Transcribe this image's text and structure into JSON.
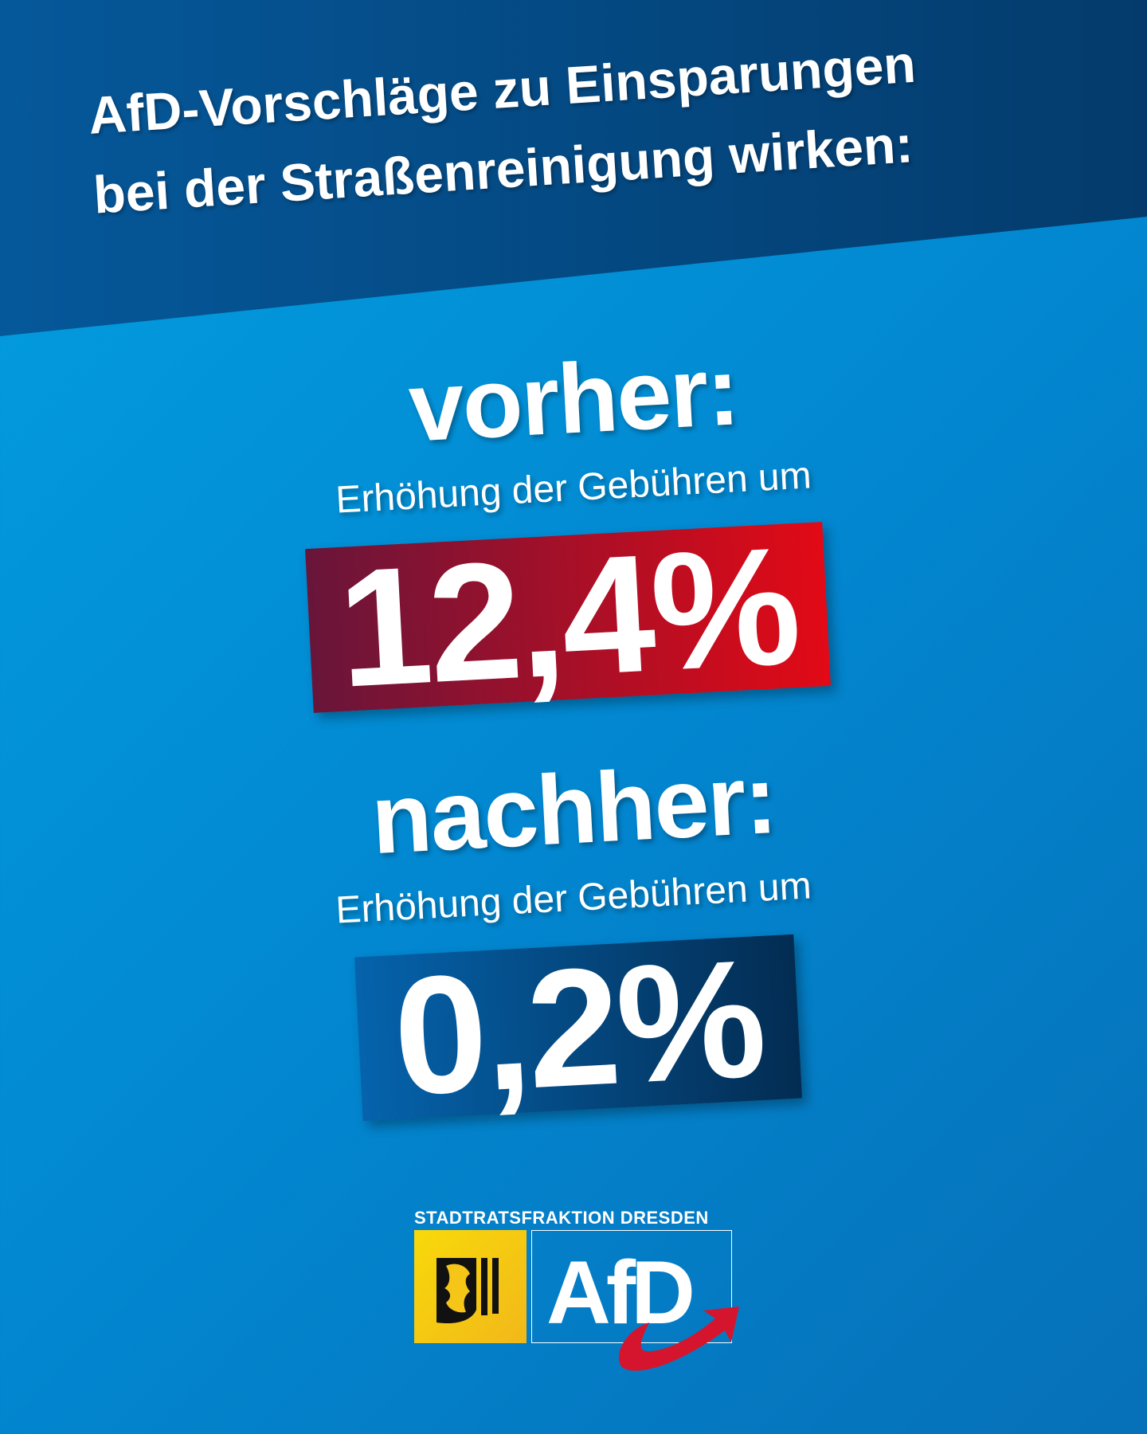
{
  "header": {
    "title_line1": "AfD-Vorschläge zu Einsparungen",
    "title_line2": "bei der Straßenreinigung wirken:"
  },
  "before": {
    "label": "vorher:",
    "description": "Erhöhung der Gebühren um",
    "value": "12,4%"
  },
  "after": {
    "label": "nachher:",
    "description": "Erhöhung der Gebühren um",
    "value": "0,2%"
  },
  "logo": {
    "caption": "STADTRATSFRAKTION DRESDEN",
    "wordmark": "AfD"
  },
  "colors": {
    "red": "#e20a16",
    "dark_red": "#68153a",
    "navy": "#043b6c",
    "sky": "#039fe0",
    "yellow": "#f8d90a"
  }
}
